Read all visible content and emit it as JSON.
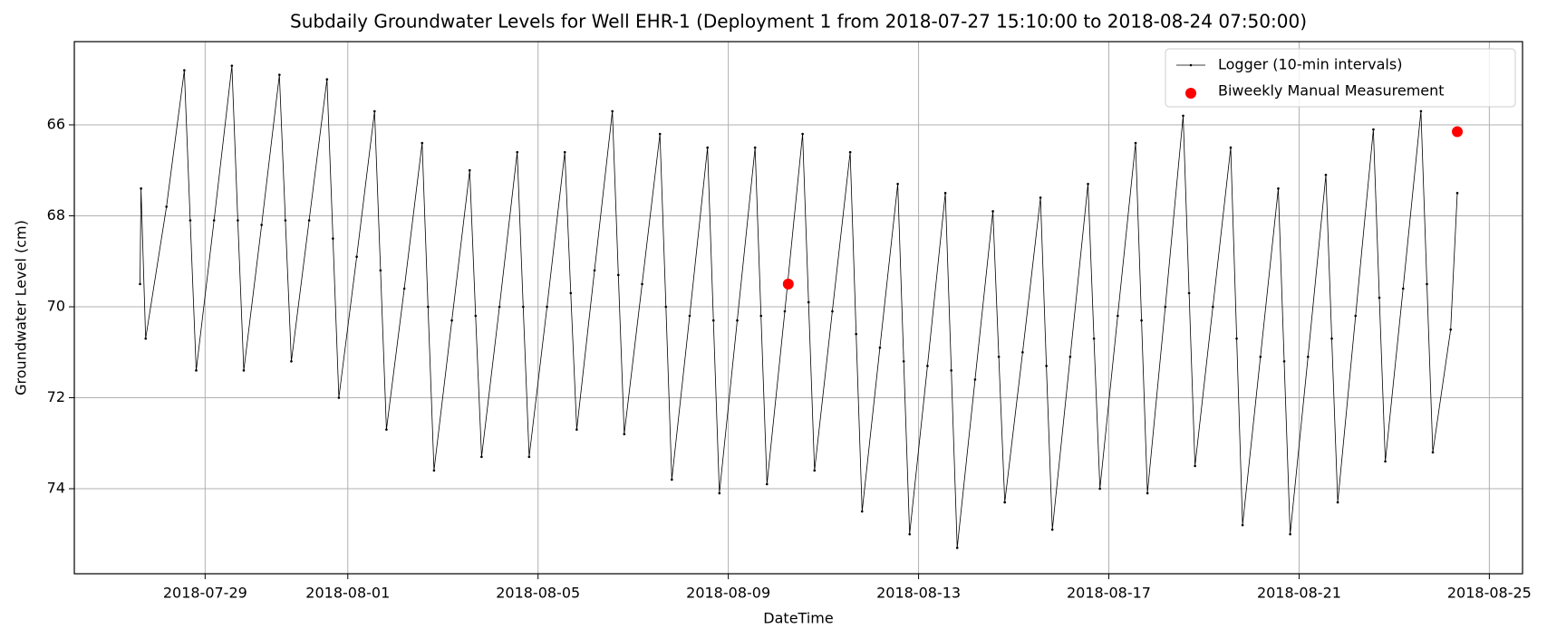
{
  "chart_data": {
    "type": "line",
    "title": "Subdaily Groundwater Levels for Well EHR-1 (Deployment 1 from 2018-07-27 15:10:00 to 2018-08-24 07:50:00)",
    "x_label": "DateTime",
    "y_label": "Groundwater Level (cm)",
    "xlim": [
      "2018-07-26 06:00",
      "2018-08-25 16:45"
    ],
    "xticks": [
      "2018-07-29",
      "2018-08-01",
      "2018-08-05",
      "2018-08-09",
      "2018-08-13",
      "2018-08-17",
      "2018-08-21",
      "2018-08-25"
    ],
    "ylim": [
      64.17,
      75.87
    ],
    "y_inverted": true,
    "yticks": [
      66,
      68,
      70,
      72,
      74
    ],
    "grid": true,
    "legend": "upper right",
    "series": [
      {
        "name": "Logger (10-min intervals)",
        "type": "line",
        "color": "#000000",
        "x": [
          "2018-07-27 15:10",
          "2018-07-27 15:40",
          "2018-07-27 18:00",
          "2018-07-28 04:30",
          "2018-07-28 13:30",
          "2018-07-28 16:30",
          "2018-07-28 19:30",
          "2018-07-29 04:30",
          "2018-07-29 13:30",
          "2018-07-29 16:30",
          "2018-07-29 19:30",
          "2018-07-30 04:30",
          "2018-07-30 13:30",
          "2018-07-30 16:30",
          "2018-07-30 19:30",
          "2018-07-31 04:30",
          "2018-07-31 13:30",
          "2018-07-31 16:30",
          "2018-07-31 19:30",
          "2018-08-01 04:30",
          "2018-08-01 13:30",
          "2018-08-01 16:30",
          "2018-08-01 19:30",
          "2018-08-02 04:30",
          "2018-08-02 13:30",
          "2018-08-02 16:30",
          "2018-08-02 19:30",
          "2018-08-03 04:30",
          "2018-08-03 13:30",
          "2018-08-03 16:30",
          "2018-08-03 19:30",
          "2018-08-04 04:30",
          "2018-08-04 13:30",
          "2018-08-04 16:30",
          "2018-08-04 19:30",
          "2018-08-05 04:30",
          "2018-08-05 13:30",
          "2018-08-05 16:30",
          "2018-08-05 19:30",
          "2018-08-06 04:30",
          "2018-08-06 13:30",
          "2018-08-06 16:30",
          "2018-08-06 19:30",
          "2018-08-07 04:30",
          "2018-08-07 13:30",
          "2018-08-07 16:30",
          "2018-08-07 19:30",
          "2018-08-08 04:30",
          "2018-08-08 13:30",
          "2018-08-08 16:30",
          "2018-08-08 19:30",
          "2018-08-09 04:30",
          "2018-08-09 13:30",
          "2018-08-09 16:30",
          "2018-08-09 19:30",
          "2018-08-10 04:30",
          "2018-08-10 13:30",
          "2018-08-10 16:30",
          "2018-08-10 19:30",
          "2018-08-11 04:30",
          "2018-08-11 13:30",
          "2018-08-11 16:30",
          "2018-08-11 19:30",
          "2018-08-12 04:30",
          "2018-08-12 13:30",
          "2018-08-12 16:30",
          "2018-08-12 19:30",
          "2018-08-13 04:30",
          "2018-08-13 13:30",
          "2018-08-13 16:30",
          "2018-08-13 19:30",
          "2018-08-14 04:30",
          "2018-08-14 13:30",
          "2018-08-14 16:30",
          "2018-08-14 19:30",
          "2018-08-15 04:30",
          "2018-08-15 13:30",
          "2018-08-15 16:30",
          "2018-08-15 19:30",
          "2018-08-16 04:30",
          "2018-08-16 13:30",
          "2018-08-16 16:30",
          "2018-08-16 19:30",
          "2018-08-17 04:30",
          "2018-08-17 13:30",
          "2018-08-17 16:30",
          "2018-08-17 19:30",
          "2018-08-18 04:30",
          "2018-08-18 13:30",
          "2018-08-18 16:30",
          "2018-08-18 19:30",
          "2018-08-19 04:30",
          "2018-08-19 13:30",
          "2018-08-19 16:30",
          "2018-08-19 19:30",
          "2018-08-20 04:30",
          "2018-08-20 13:30",
          "2018-08-20 16:30",
          "2018-08-20 19:30",
          "2018-08-21 04:30",
          "2018-08-21 13:30",
          "2018-08-21 16:30",
          "2018-08-21 19:30",
          "2018-08-22 04:30",
          "2018-08-22 13:30",
          "2018-08-22 16:30",
          "2018-08-22 19:30",
          "2018-08-23 04:30",
          "2018-08-23 13:30",
          "2018-08-23 16:30",
          "2018-08-23 19:30",
          "2018-08-24 04:30",
          "2018-08-24 07:50"
        ],
        "values": [
          69.5,
          67.4,
          70.7,
          67.8,
          64.8,
          68.1,
          71.4,
          68.1,
          64.7,
          68.1,
          71.4,
          68.2,
          64.9,
          68.1,
          71.2,
          68.1,
          65.0,
          68.5,
          72.0,
          68.9,
          65.7,
          69.2,
          72.7,
          69.6,
          66.4,
          70.0,
          73.6,
          70.3,
          67.0,
          70.2,
          73.3,
          70.0,
          66.6,
          70.0,
          73.3,
          70.0,
          66.6,
          69.7,
          72.7,
          69.2,
          65.7,
          69.3,
          72.8,
          69.5,
          66.2,
          70.0,
          73.8,
          70.2,
          66.5,
          70.3,
          74.1,
          70.3,
          66.5,
          70.2,
          73.9,
          70.1,
          66.2,
          69.9,
          73.6,
          70.1,
          66.6,
          70.6,
          74.5,
          70.9,
          67.3,
          71.2,
          75.0,
          71.3,
          67.5,
          71.4,
          75.3,
          71.6,
          67.9,
          71.1,
          74.3,
          71.0,
          67.6,
          71.3,
          74.9,
          71.1,
          67.3,
          70.7,
          74.0,
          70.2,
          66.4,
          70.3,
          74.1,
          70.0,
          65.8,
          69.7,
          73.5,
          70.0,
          66.5,
          70.7,
          74.8,
          71.1,
          67.4,
          71.2,
          75.0,
          71.1,
          67.1,
          70.7,
          74.3,
          70.2,
          66.1,
          69.8,
          73.4,
          69.6,
          65.7,
          69.5,
          73.2,
          70.5,
          67.5
        ]
      },
      {
        "name": "Biweekly Manual Measurement",
        "type": "scatter",
        "color": "#ff0000",
        "x": [
          "2018-08-10 06:15",
          "2018-08-24 07:50"
        ],
        "values": [
          69.5,
          66.15
        ]
      }
    ]
  }
}
